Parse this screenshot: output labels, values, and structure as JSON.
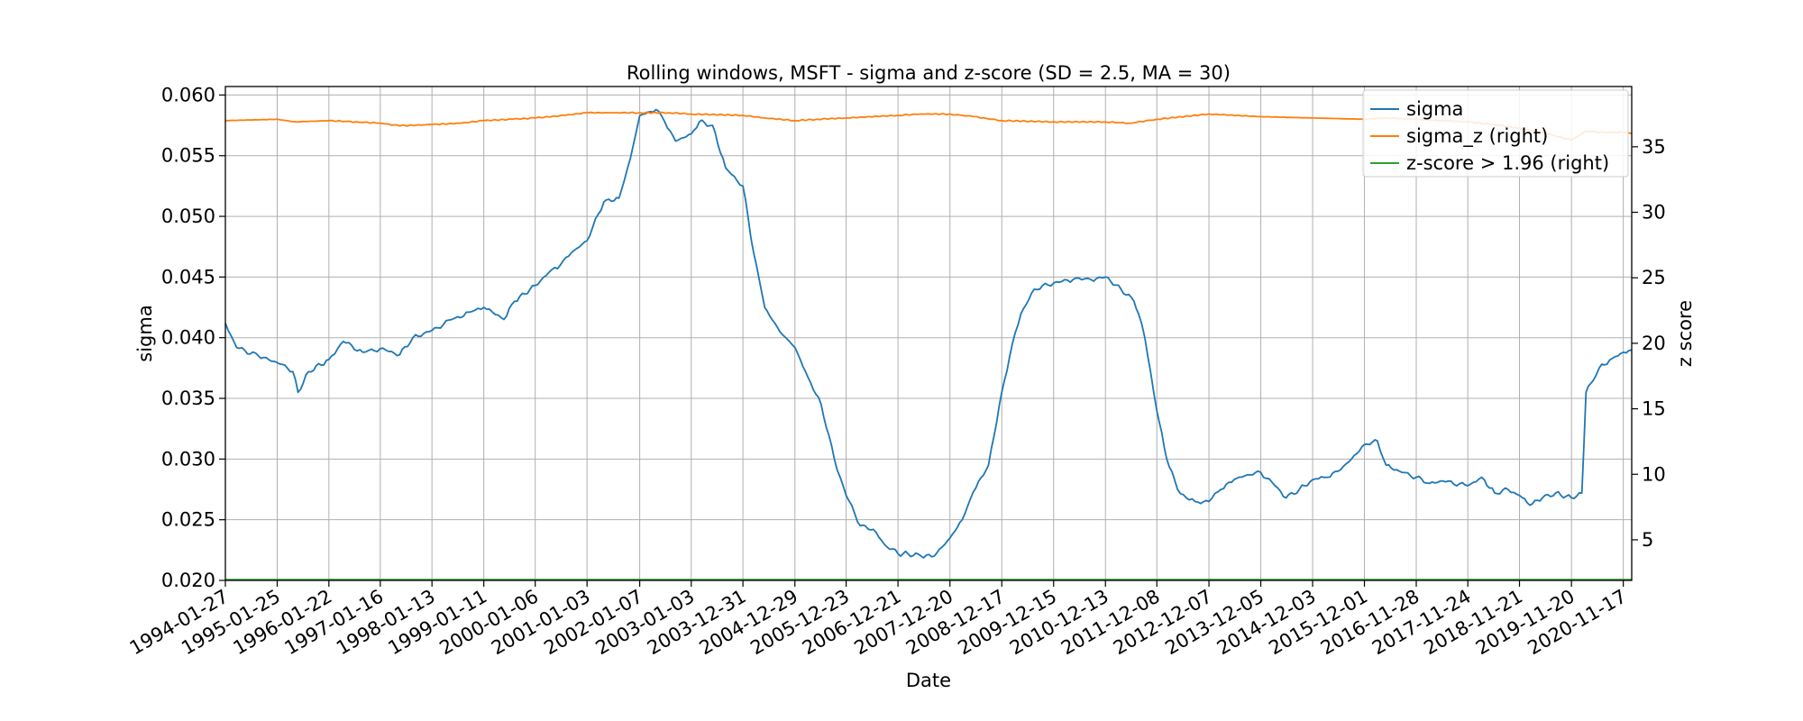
{
  "chart_data": {
    "type": "line",
    "title": "Rolling windows, MSFT - sigma and z-score (SD = 2.5, MA = 30)",
    "xlabel": "Date",
    "ylabel": "sigma",
    "ylabel_right": "z score",
    "grid": true,
    "legend_position": "top-right",
    "x_ticks": [
      "1994-01-27",
      "1995-01-25",
      "1996-01-22",
      "1997-01-16",
      "1998-01-13",
      "1999-01-11",
      "2000-01-06",
      "2001-01-03",
      "2002-01-07",
      "2003-01-03",
      "2003-12-31",
      "2004-12-29",
      "2005-12-23",
      "2006-12-21",
      "2007-12-20",
      "2008-12-17",
      "2009-12-15",
      "2010-12-13",
      "2011-12-08",
      "2012-12-07",
      "2013-12-05",
      "2014-12-03",
      "2015-12-01",
      "2016-11-28",
      "2017-11-24",
      "2018-11-21",
      "2019-11-20",
      "2020-11-17"
    ],
    "xlim": [
      "1994-01-27",
      "2021-01-15"
    ],
    "y_left": {
      "ylim": [
        0.02,
        0.0607
      ],
      "ticks": [
        "0.020",
        "0.025",
        "0.030",
        "0.035",
        "0.040",
        "0.045",
        "0.050",
        "0.055",
        "0.060"
      ]
    },
    "y_right": {
      "ylim": [
        1.9,
        39.6
      ],
      "ticks": [
        "5",
        "10",
        "15",
        "20",
        "25",
        "30",
        "35"
      ]
    },
    "series": [
      {
        "name": "sigma",
        "axis": "left",
        "color": "#1f77b4",
        "x": [
          "1994-01-27",
          "1994-04-15",
          "1994-09-15",
          "1995-03-01",
          "1995-05-15",
          "1995-06-20",
          "1995-09-01",
          "1996-01-22",
          "1996-05-01",
          "1996-09-15",
          "1997-01-16",
          "1997-06-01",
          "1997-09-01",
          "1998-01-13",
          "1998-06-01",
          "1998-10-01",
          "1999-01-11",
          "1999-06-01",
          "1999-08-15",
          "2000-01-06",
          "2000-05-01",
          "2000-07-01",
          "2000-09-15",
          "2001-01-03",
          "2001-05-01",
          "2001-08-15",
          "2001-11-01",
          "2002-01-07",
          "2002-05-01",
          "2002-07-01",
          "2002-09-15",
          "2003-01-03",
          "2003-03-01",
          "2003-06-01",
          "2003-09-01",
          "2003-12-31",
          "2004-03-15",
          "2004-06-01",
          "2004-09-15",
          "2004-12-29",
          "2005-04-01",
          "2005-07-01",
          "2005-10-01",
          "2005-12-23",
          "2006-04-01",
          "2006-07-01",
          "2006-09-15",
          "2006-12-21",
          "2007-03-01",
          "2007-06-01",
          "2007-09-01",
          "2007-12-20",
          "2008-03-15",
          "2008-06-01",
          "2008-09-15",
          "2008-12-17",
          "2009-03-01",
          "2009-05-01",
          "2009-08-01",
          "2009-12-15",
          "2010-05-01",
          "2010-09-01",
          "2010-12-13",
          "2011-04-01",
          "2011-07-01",
          "2011-08-01",
          "2011-09-15",
          "2011-12-08",
          "2012-02-15",
          "2012-05-01",
          "2012-07-01",
          "2012-09-01",
          "2012-12-07",
          "2013-03-01",
          "2013-06-01",
          "2013-09-01",
          "2013-12-05",
          "2014-03-15",
          "2014-06-01",
          "2014-09-01",
          "2014-12-03",
          "2015-03-15",
          "2015-06-01",
          "2015-09-01",
          "2015-12-01",
          "2016-03-01",
          "2016-05-01",
          "2016-08-01",
          "2016-11-28",
          "2017-03-01",
          "2017-06-01",
          "2017-11-24",
          "2018-03-01",
          "2018-06-01",
          "2018-09-01",
          "2018-11-21",
          "2019-02-01",
          "2019-05-01",
          "2019-08-01",
          "2019-11-20",
          "2020-02-01",
          "2020-03-01",
          "2020-04-01",
          "2020-06-01",
          "2020-09-01",
          "2020-11-17",
          "2021-01-15"
        ],
        "y": [
          0.0412,
          0.0392,
          0.0385,
          0.0378,
          0.0372,
          0.0355,
          0.0372,
          0.0382,
          0.0397,
          0.0388,
          0.0391,
          0.0386,
          0.04,
          0.0406,
          0.0415,
          0.0421,
          0.0425,
          0.0415,
          0.043,
          0.0443,
          0.0456,
          0.046,
          0.047,
          0.048,
          0.0512,
          0.0515,
          0.0547,
          0.0583,
          0.0588,
          0.0578,
          0.0562,
          0.0568,
          0.0578,
          0.0575,
          0.054,
          0.0525,
          0.047,
          0.0425,
          0.0405,
          0.0392,
          0.0367,
          0.0345,
          0.03,
          0.027,
          0.0245,
          0.0242,
          0.023,
          0.0222,
          0.0222,
          0.022,
          0.022,
          0.0235,
          0.025,
          0.0273,
          0.0295,
          0.0355,
          0.0395,
          0.042,
          0.044,
          0.0445,
          0.0448,
          0.0448,
          0.045,
          0.044,
          0.043,
          0.042,
          0.04,
          0.034,
          0.03,
          0.0275,
          0.0268,
          0.0265,
          0.0265,
          0.0275,
          0.0283,
          0.0287,
          0.0289,
          0.0278,
          0.0268,
          0.0275,
          0.0283,
          0.0285,
          0.029,
          0.03,
          0.0312,
          0.0315,
          0.0295,
          0.029,
          0.0285,
          0.028,
          0.0282,
          0.0278,
          0.0285,
          0.0272,
          0.0275,
          0.027,
          0.0262,
          0.0268,
          0.0272,
          0.0268,
          0.0272,
          0.0355,
          0.0362,
          0.0375,
          0.0383,
          0.0388,
          0.039
        ]
      },
      {
        "name": "sigma_z (right)",
        "axis": "right",
        "color": "#ff7f0e",
        "x": [
          "1994-01-27",
          "1995-01-25",
          "1995-06-01",
          "1996-01-22",
          "1996-08-01",
          "1997-01-16",
          "1997-06-01",
          "1998-01-13",
          "1998-08-01",
          "1999-01-11",
          "1999-08-01",
          "2000-01-06",
          "2000-08-01",
          "2001-01-03",
          "2001-08-01",
          "2002-01-07",
          "2002-08-01",
          "2003-01-03",
          "2003-12-31",
          "2004-06-01",
          "2004-12-29",
          "2005-06-01",
          "2005-12-23",
          "2006-12-21",
          "2007-06-01",
          "2007-12-20",
          "2008-06-01",
          "2008-12-17",
          "2009-12-15",
          "2010-12-13",
          "2011-06-01",
          "2011-12-08",
          "2012-12-07",
          "2013-12-05",
          "2014-12-03",
          "2015-12-01",
          "2016-05-01",
          "2016-11-28",
          "2017-11-24",
          "2018-06-01",
          "2018-11-21",
          "2019-06-01",
          "2019-11-20",
          "2020-03-01",
          "2020-06-01",
          "2020-11-17",
          "2021-01-15"
        ],
        "y": [
          37.0,
          37.1,
          36.9,
          37.0,
          36.9,
          36.8,
          36.6,
          36.7,
          36.8,
          37.0,
          37.1,
          37.2,
          37.4,
          37.6,
          37.6,
          37.6,
          37.6,
          37.5,
          37.4,
          37.2,
          37.0,
          37.1,
          37.2,
          37.4,
          37.5,
          37.5,
          37.3,
          37.0,
          36.9,
          36.9,
          36.8,
          37.1,
          37.5,
          37.3,
          37.2,
          37.1,
          37.2,
          37.1,
          36.9,
          36.7,
          36.4,
          36.0,
          35.5,
          36.2,
          36.1,
          36.1,
          36.0
        ]
      },
      {
        "name": "z-score > 1.96 (right)",
        "axis": "right",
        "color": "#2ca02c",
        "x": [
          "1994-01-27",
          "2021-01-15"
        ],
        "y": [
          1.96,
          1.96
        ]
      }
    ]
  }
}
